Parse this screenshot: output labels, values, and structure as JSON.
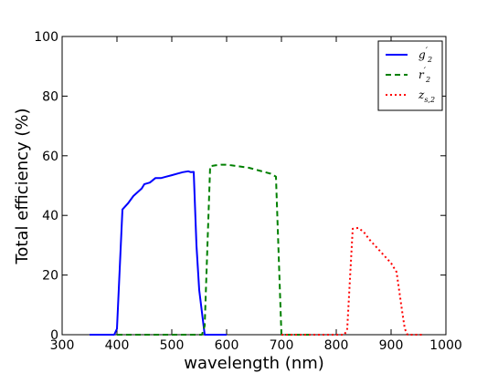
{
  "chart_data": {
    "type": "line",
    "title": "",
    "xlabel": "wavelength (nm)",
    "ylabel": "Total efficiency (%)",
    "xlim": [
      300,
      1000
    ],
    "ylim": [
      0,
      100
    ],
    "xticks": [
      "300",
      "400",
      "500",
      "600",
      "700",
      "800",
      "900",
      "1000"
    ],
    "yticks": [
      "0",
      "20",
      "40",
      "60",
      "80",
      "100"
    ],
    "grid": false,
    "legend_position": "top-right",
    "series": [
      {
        "name": "g'2",
        "legend_main": "g",
        "legend_sup": "′",
        "legend_sub": "2",
        "color": "#0000ff",
        "style": "solid",
        "points": [
          [
            350,
            0
          ],
          [
            395,
            0
          ],
          [
            400,
            2
          ],
          [
            410,
            42
          ],
          [
            420,
            44
          ],
          [
            430,
            46.5
          ],
          [
            445,
            49
          ],
          [
            450,
            50.5
          ],
          [
            460,
            51
          ],
          [
            470,
            52.5
          ],
          [
            480,
            52.5
          ],
          [
            490,
            53
          ],
          [
            500,
            53.5
          ],
          [
            510,
            54
          ],
          [
            520,
            54.5
          ],
          [
            530,
            54.8
          ],
          [
            535,
            54.5
          ],
          [
            540,
            54.6
          ],
          [
            545,
            30
          ],
          [
            550,
            15
          ],
          [
            560,
            0
          ],
          [
            600,
            0
          ]
        ]
      },
      {
        "name": "r'2",
        "legend_main": "r",
        "legend_sup": "′",
        "legend_sub": "2",
        "color": "#008000",
        "style": "dashed",
        "points": [
          [
            400,
            0
          ],
          [
            555,
            0
          ],
          [
            560,
            3
          ],
          [
            570,
            56.5
          ],
          [
            580,
            56.8
          ],
          [
            590,
            57
          ],
          [
            600,
            57
          ],
          [
            620,
            56.5
          ],
          [
            640,
            56
          ],
          [
            660,
            55
          ],
          [
            680,
            54
          ],
          [
            690,
            53
          ],
          [
            700,
            0
          ],
          [
            750,
            0
          ]
        ]
      },
      {
        "name": "zs,2",
        "legend_main": "z",
        "legend_sup": "",
        "legend_sub": "s,2",
        "color": "#ff0000",
        "style": "dashdot",
        "points": [
          [
            700,
            0
          ],
          [
            815,
            0
          ],
          [
            820,
            2
          ],
          [
            830,
            35.5
          ],
          [
            840,
            35.8
          ],
          [
            850,
            34.5
          ],
          [
            860,
            32
          ],
          [
            870,
            30
          ],
          [
            880,
            28
          ],
          [
            890,
            26
          ],
          [
            900,
            24
          ],
          [
            910,
            21
          ],
          [
            920,
            8
          ],
          [
            925,
            2
          ],
          [
            930,
            0
          ],
          [
            960,
            0
          ]
        ]
      }
    ]
  }
}
